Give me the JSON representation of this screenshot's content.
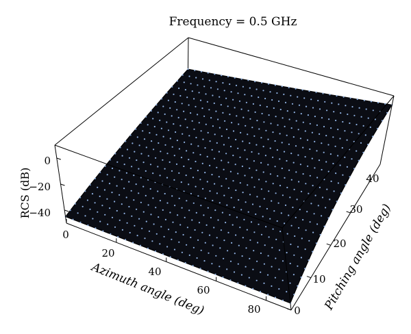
{
  "chart_data": {
    "type": "surface",
    "title": "Frequency = 0.5 GHz",
    "xlabel": "Azimuth angle (deg)",
    "ylabel": "Pitching angle (deg)",
    "zlabel": "RCS (dB)",
    "x_ticks": [
      "0",
      "20",
      "40",
      "60",
      "80"
    ],
    "y_ticks": [
      "0",
      "10",
      "20",
      "30",
      "40"
    ],
    "z_ticks": [
      "0",
      "−20",
      "−40"
    ],
    "xlim": [
      0,
      90
    ],
    "ylim": [
      0,
      45
    ],
    "zlim": [
      -50,
      10
    ],
    "surface_color": "#0b0d14",
    "point_color": "#8fb0e0",
    "corners": [
      {
        "azimuth": 0,
        "pitching": 0,
        "rcs": -45
      },
      {
        "azimuth": 90,
        "pitching": 0,
        "rcs": -45
      },
      {
        "azimuth": 90,
        "pitching": 45,
        "rcs": 2
      },
      {
        "azimuth": 0,
        "pitching": 45,
        "rcs": -20
      }
    ]
  }
}
